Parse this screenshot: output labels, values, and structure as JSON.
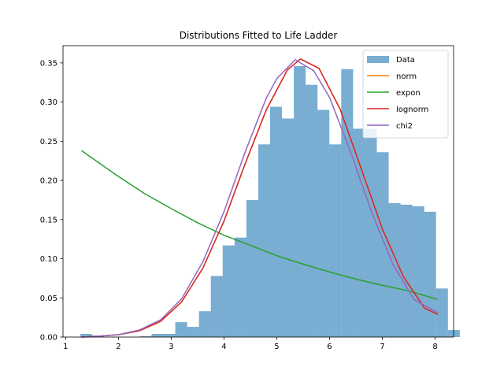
{
  "chart_data": {
    "type": "bar",
    "title": "Distributions Fitted to Life Ladder",
    "xlabel": "",
    "ylabel": "",
    "xlim": [
      0.95,
      8.35
    ],
    "ylim": [
      0,
      0.372
    ],
    "xticks": [
      1,
      2,
      3,
      4,
      5,
      6,
      7,
      8
    ],
    "yticks": [
      0.0,
      0.05,
      0.1,
      0.15,
      0.2,
      0.25,
      0.3,
      0.35
    ],
    "ytick_labels": [
      "0.00",
      "0.05",
      "0.10",
      "0.15",
      "0.20",
      "0.25",
      "0.30",
      "0.35"
    ],
    "grid": false,
    "legend_position": "top-right",
    "histogram": {
      "name": "Data",
      "color": "#1f77b4",
      "bin_start": 1.28,
      "bin_width": 0.2246,
      "values": [
        0.004,
        0.002,
        0.0,
        0.0,
        0.0,
        0.001,
        0.004,
        0.004,
        0.019,
        0.013,
        0.033,
        0.078,
        0.117,
        0.127,
        0.175,
        0.246,
        0.294,
        0.279,
        0.346,
        0.322,
        0.29,
        0.246,
        0.342,
        0.266,
        0.266,
        0.236,
        0.171,
        0.169,
        0.167,
        0.16,
        0.062,
        0.009
      ]
    },
    "series": [
      {
        "name": "norm",
        "color": "#ff7f0e",
        "x": [
          1.3,
          1.6,
          2.0,
          2.4,
          2.8,
          3.2,
          3.6,
          4.0,
          4.4,
          4.8,
          5.2,
          5.45,
          5.8,
          6.2,
          6.6,
          7.0,
          7.4,
          7.8,
          8.05
        ],
        "y": [
          0.0,
          0.001,
          0.003,
          0.008,
          0.02,
          0.045,
          0.088,
          0.148,
          0.221,
          0.29,
          0.341,
          0.355,
          0.343,
          0.291,
          0.215,
          0.138,
          0.077,
          0.037,
          0.029
        ]
      },
      {
        "name": "expon",
        "color": "#2ca02c",
        "x": [
          1.3,
          2.0,
          2.5,
          3.0,
          3.5,
          4.0,
          4.5,
          5.0,
          5.5,
          6.0,
          6.5,
          7.0,
          7.5,
          8.05
        ],
        "y": [
          0.238,
          0.205,
          0.183,
          0.164,
          0.146,
          0.13,
          0.117,
          0.104,
          0.093,
          0.083,
          0.074,
          0.066,
          0.059,
          0.048
        ]
      },
      {
        "name": "lognorm",
        "color": "#d62728",
        "x": [
          1.3,
          1.6,
          2.0,
          2.4,
          2.8,
          3.2,
          3.6,
          4.0,
          4.4,
          4.8,
          5.2,
          5.45,
          5.8,
          6.2,
          6.6,
          7.0,
          7.4,
          7.8,
          8.05
        ],
        "y": [
          0.0,
          0.001,
          0.003,
          0.008,
          0.02,
          0.045,
          0.088,
          0.148,
          0.221,
          0.29,
          0.341,
          0.355,
          0.343,
          0.291,
          0.215,
          0.138,
          0.077,
          0.037,
          0.029
        ]
      },
      {
        "name": "chi2",
        "color": "#9467bd",
        "x": [
          1.3,
          1.6,
          2.0,
          2.4,
          2.8,
          3.2,
          3.6,
          4.0,
          4.4,
          4.8,
          5.0,
          5.35,
          5.7,
          6.0,
          6.4,
          6.8,
          7.2,
          7.6,
          8.05
        ],
        "y": [
          0.0,
          0.001,
          0.003,
          0.009,
          0.022,
          0.049,
          0.096,
          0.16,
          0.236,
          0.305,
          0.33,
          0.354,
          0.34,
          0.306,
          0.236,
          0.159,
          0.093,
          0.048,
          0.031
        ]
      }
    ]
  }
}
